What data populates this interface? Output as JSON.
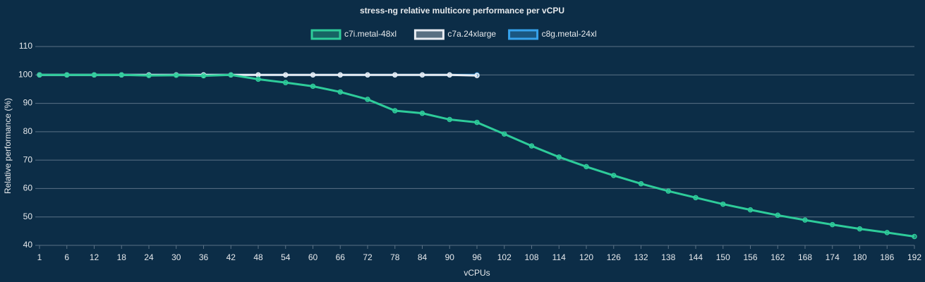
{
  "chart_data": {
    "type": "line",
    "title": "stress-ng relative multicore performance per vCPU",
    "x_label": "vCPUs",
    "y_label": "Relative performance (%)",
    "categories": [
      "1",
      "6",
      "12",
      "18",
      "24",
      "30",
      "36",
      "42",
      "48",
      "54",
      "60",
      "66",
      "72",
      "78",
      "84",
      "90",
      "96",
      "102",
      "108",
      "114",
      "120",
      "126",
      "132",
      "138",
      "144",
      "150",
      "156",
      "162",
      "168",
      "174",
      "180",
      "186",
      "192"
    ],
    "series": [
      {
        "name": "c7i.metal-48xl",
        "color": "#2ecc9a",
        "values": [
          100,
          100,
          100,
          100,
          99.8,
          99.9,
          99.7,
          100,
          98.5,
          97.3,
          96,
          94,
          91.4,
          87.4,
          86.5,
          84.3,
          83.3,
          79.2,
          75,
          71.1,
          67.7,
          64.6,
          61.7,
          59.1,
          56.8,
          54.5,
          52.5,
          50.6,
          48.9,
          47.3,
          45.8,
          44.5,
          43.1
        ]
      },
      {
        "name": "c7a.24xlarge",
        "color": "#e8ecf2",
        "values": [
          100,
          100,
          100,
          100,
          100,
          100,
          100,
          100,
          100,
          100,
          100,
          100,
          100,
          100,
          100,
          100,
          99.8,
          null,
          null,
          null,
          null,
          null,
          null,
          null,
          null,
          null,
          null,
          null,
          null,
          null,
          null,
          null,
          null
        ]
      },
      {
        "name": "c8g.metal-24xl",
        "color": "#36a2eb",
        "values": [
          100,
          100,
          100,
          100,
          100,
          100,
          100,
          100,
          100,
          100,
          100,
          100,
          100,
          100,
          100,
          100,
          100,
          null,
          null,
          null,
          null,
          null,
          null,
          null,
          null,
          null,
          null,
          null,
          null,
          null,
          null,
          null,
          null
        ]
      }
    ],
    "ylim": [
      40,
      110
    ],
    "yticks": [
      40,
      50,
      60,
      70,
      80,
      90,
      100,
      110
    ],
    "grid": true,
    "legend": "top"
  }
}
